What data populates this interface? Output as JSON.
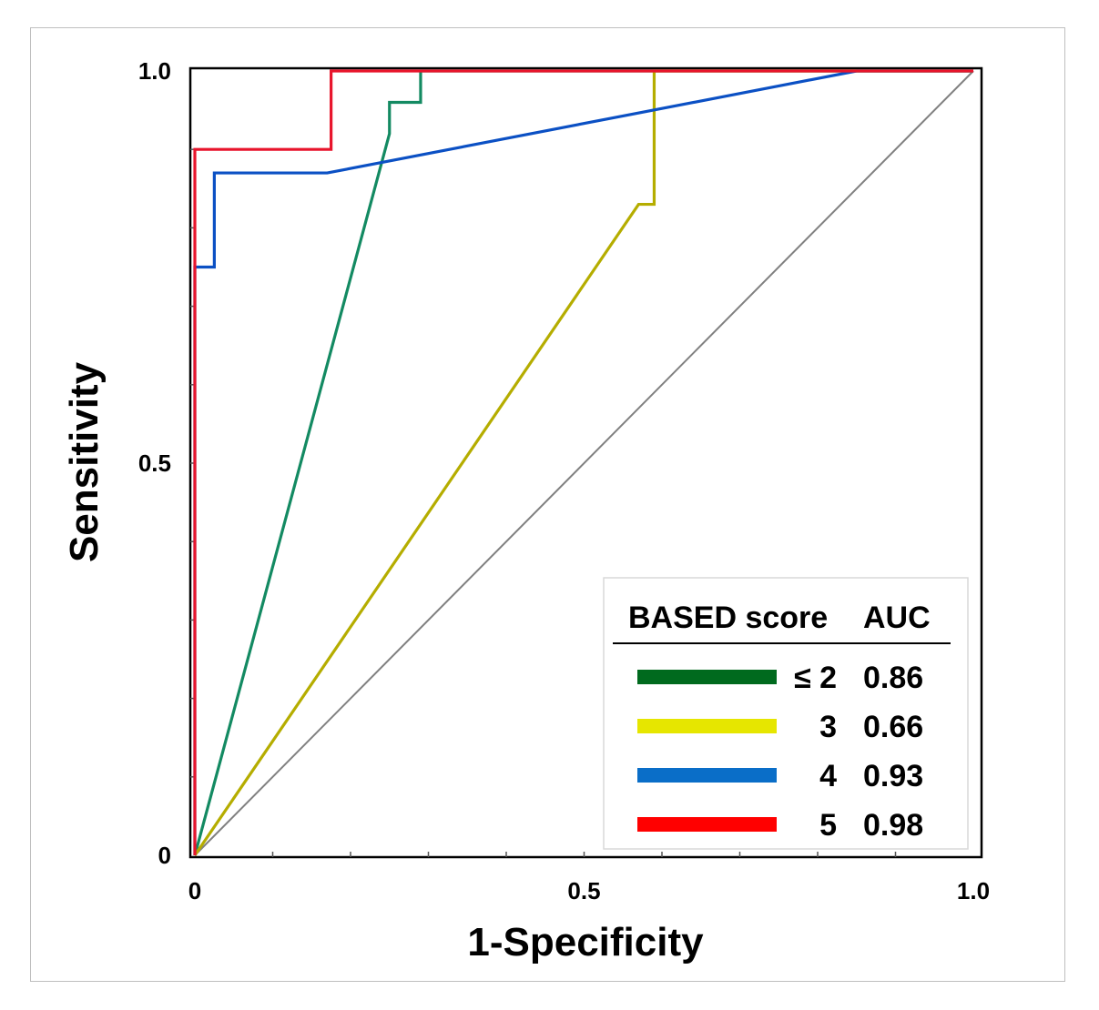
{
  "chart_data": {
    "type": "line",
    "title": "",
    "xlabel": "1-Specificity",
    "ylabel": "Sensitivity",
    "xlim": [
      0,
      1
    ],
    "ylim": [
      0,
      1
    ],
    "x_tick_labels": [
      "0",
      "0.5",
      "1.0"
    ],
    "y_tick_labels": [
      "0",
      "0.5",
      "1.0"
    ],
    "legend": {
      "placement": "bottom-right",
      "header_score": "BASED score",
      "header_auc": "AUC"
    },
    "reference_line": {
      "name": "chance",
      "color": "#808080",
      "x": [
        0,
        1
      ],
      "y": [
        0,
        1
      ]
    },
    "series": [
      {
        "name": "≤ 2",
        "auc": "0.86",
        "color": "#138a62",
        "legend_color": "#006a1e",
        "x": [
          0,
          0.25,
          0.25,
          0.29,
          0.29,
          1.0
        ],
        "y": [
          0,
          0.92,
          0.96,
          0.96,
          1.0,
          1.0
        ]
      },
      {
        "name": "3",
        "auc": "0.66",
        "color": "#b5ad00",
        "legend_color": "#e6e600",
        "x": [
          0,
          0.57,
          0.59,
          0.59,
          1.0
        ],
        "y": [
          0,
          0.83,
          0.83,
          1.0,
          1.0
        ]
      },
      {
        "name": "4",
        "auc": "0.93",
        "color": "#0b50c4",
        "legend_color": "#0a6ec8",
        "x": [
          0,
          0,
          0.025,
          0.025,
          0.17,
          0.85,
          1.0
        ],
        "y": [
          0,
          0.75,
          0.75,
          0.87,
          0.87,
          1.0,
          1.0
        ]
      },
      {
        "name": "5",
        "auc": "0.98",
        "color": "#e8142b",
        "legend_color": "#ff0000",
        "x": [
          0,
          0,
          0.175,
          0.175,
          1.0
        ],
        "y": [
          0,
          0.9,
          0.9,
          1.0,
          1.0
        ]
      }
    ]
  }
}
